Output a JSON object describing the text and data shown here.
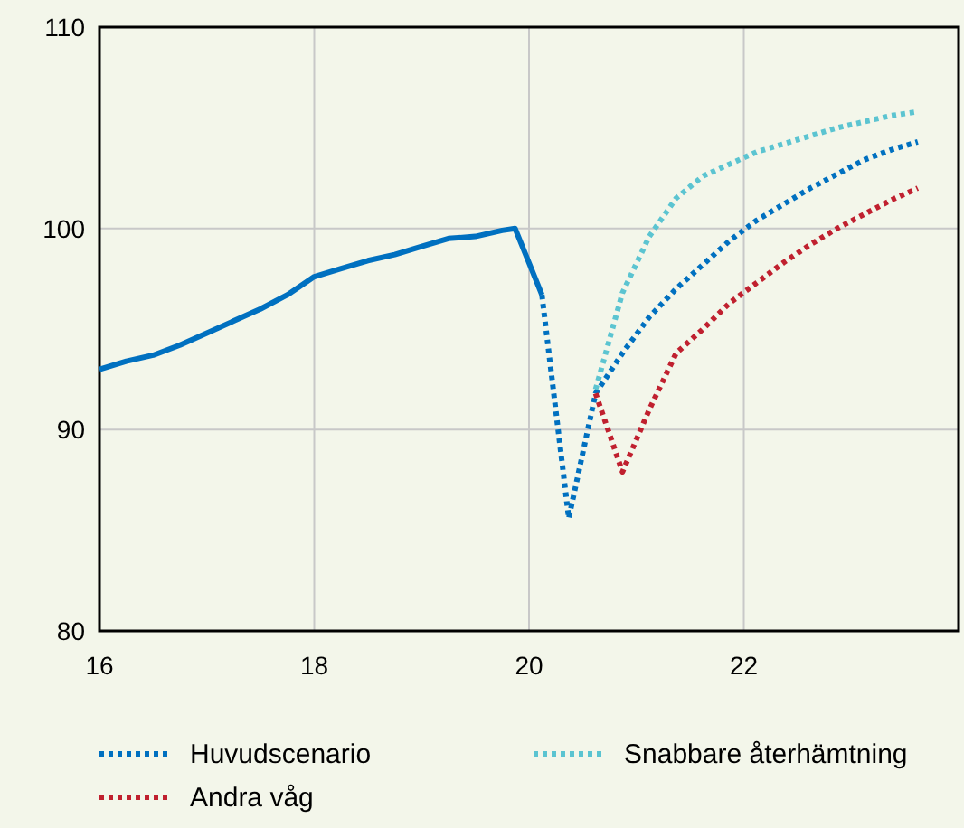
{
  "chart_data": {
    "type": "line",
    "xlim": [
      16,
      24
    ],
    "xticks": [
      16,
      18,
      20,
      22
    ],
    "ylim": [
      80,
      110
    ],
    "yticks": [
      80,
      90,
      100,
      110
    ],
    "grid": true,
    "legend": "bottom",
    "series": [
      {
        "color": "#0070c0",
        "line_style": "solid",
        "x": [
          16.0,
          16.25,
          16.5,
          16.75,
          17.0,
          17.25,
          17.5,
          17.75,
          18.0,
          18.25,
          18.5,
          18.75,
          19.0,
          19.25,
          19.5,
          19.75,
          19.87,
          20.12
        ],
        "values": [
          93.0,
          93.4,
          93.7,
          94.2,
          94.8,
          95.4,
          96.0,
          96.7,
          97.6,
          98.0,
          98.4,
          98.7,
          99.1,
          99.5,
          99.6,
          99.9,
          100.0,
          96.7
        ]
      },
      {
        "name": "Huvudscenario",
        "color": "#0070c0",
        "line_style": "dotted",
        "x": [
          20.12,
          20.37,
          20.62,
          20.87,
          21.12,
          21.37,
          21.62,
          21.87,
          22.12,
          22.37,
          22.62,
          22.87,
          23.12,
          23.37,
          23.62
        ],
        "values": [
          96.7,
          85.6,
          91.8,
          93.8,
          95.6,
          97.0,
          98.2,
          99.4,
          100.4,
          101.2,
          102.0,
          102.7,
          103.4,
          103.9,
          104.3
        ]
      },
      {
        "name": "Andra våg",
        "color": "#c0202f",
        "line_style": "dotted",
        "x": [
          20.62,
          20.87,
          21.12,
          21.37,
          21.62,
          21.87,
          22.12,
          22.37,
          22.62,
          22.87,
          23.12,
          23.37,
          23.62
        ],
        "values": [
          91.8,
          87.9,
          91.0,
          93.8,
          95.0,
          96.3,
          97.3,
          98.3,
          99.2,
          100.0,
          100.7,
          101.4,
          102.0
        ]
      },
      {
        "name": "Snabbare återhämtning",
        "color": "#5bc4d1",
        "line_style": "dotted",
        "x": [
          20.62,
          20.87,
          21.12,
          21.37,
          21.62,
          21.87,
          22.12,
          22.37,
          22.62,
          22.87,
          23.12,
          23.37,
          23.62
        ],
        "values": [
          92.0,
          96.8,
          99.6,
          101.5,
          102.6,
          103.2,
          103.8,
          104.2,
          104.6,
          105.0,
          105.3,
          105.6,
          105.8
        ]
      }
    ]
  }
}
